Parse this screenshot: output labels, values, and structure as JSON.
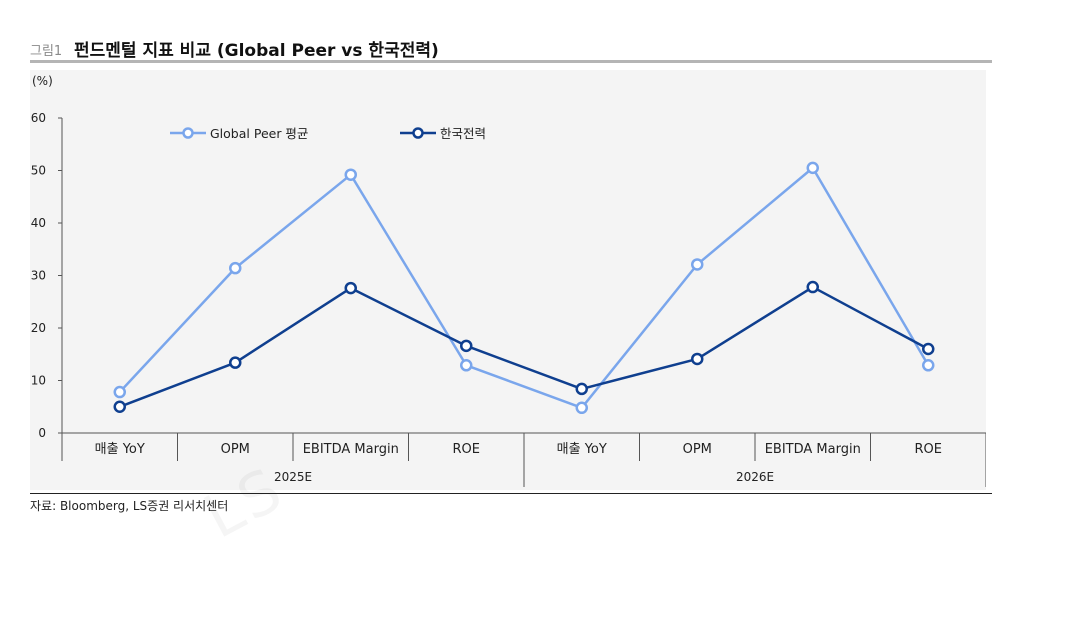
{
  "header": {
    "figure_label": "그림1",
    "title": "펀드멘털 지표 비교 (Global Peer vs 한국전력)"
  },
  "footer": {
    "source": "자료: Bloomberg, LS증권 리서치센터"
  },
  "watermark": "LS",
  "colors": {
    "peer": "#7aa6ec",
    "kepco": "#0f3f8f",
    "background": "#f4f4f4"
  },
  "chart_data": {
    "type": "line",
    "unit_label": "(%)",
    "ylim": [
      0,
      60
    ],
    "yticks": [
      0,
      10,
      20,
      30,
      40,
      50,
      60
    ],
    "grid": false,
    "legend_position": "top-left",
    "categories": [
      "매출 YoY",
      "OPM",
      "EBITDA Margin",
      "ROE",
      "매출 YoY",
      "OPM",
      "EBITDA Margin",
      "ROE"
    ],
    "groups": [
      {
        "label": "2025E",
        "span": 4
      },
      {
        "label": "2026E",
        "span": 4
      }
    ],
    "series": [
      {
        "name": "Global Peer 평균",
        "color": "#7aa6ec",
        "values": [
          7.8,
          31.4,
          49.2,
          12.9,
          4.8,
          32.1,
          50.5,
          12.9
        ]
      },
      {
        "name": "한국전력",
        "color": "#0f3f8f",
        "values": [
          5.0,
          13.4,
          27.6,
          16.6,
          8.4,
          14.1,
          27.8,
          16.0
        ]
      }
    ]
  }
}
